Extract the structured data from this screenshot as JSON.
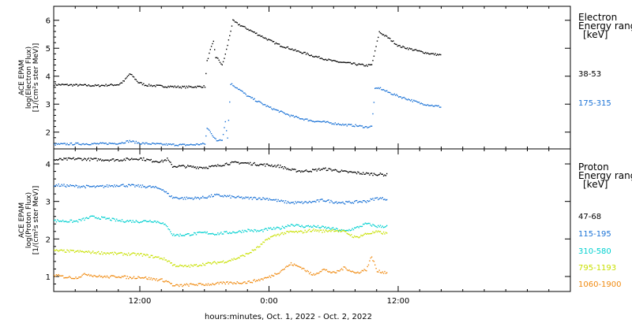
{
  "chart_data": [
    {
      "type": "scatter",
      "panel": "electron",
      "ylabel_lines": [
        "ACE EPAM",
        "log(Electron Flux)",
        "[1/(cm²s ster MeV)]"
      ],
      "ylim": [
        1.4,
        6.5
      ],
      "yticks": [
        2,
        3,
        4,
        5,
        6
      ],
      "legend_title": [
        "Electron",
        "Energy ranges",
        "[keV]"
      ],
      "series": [
        {
          "name": "38-53",
          "color": "#000000",
          "x": [
            0,
            2,
            4,
            6,
            6.5,
            7,
            7.3,
            7.8,
            8.5,
            10,
            12,
            14,
            14.2,
            14.5,
            14.8,
            15.0,
            15.3,
            15.6,
            15.9,
            16.2,
            16.6,
            17,
            17.5,
            18,
            19,
            20,
            21,
            22,
            22.5,
            23.2,
            24,
            25,
            26,
            27,
            28,
            29,
            29.5,
            29.8,
            30.2,
            30.6,
            31,
            31.5,
            32,
            33,
            34,
            35,
            36
          ],
          "y": [
            3.72,
            3.7,
            3.68,
            3.72,
            3.85,
            4.1,
            4.02,
            3.8,
            3.7,
            3.66,
            3.63,
            3.65,
            4.55,
            4.95,
            5.25,
            4.7,
            4.6,
            4.4,
            4.8,
            5.3,
            6.0,
            5.9,
            5.8,
            5.7,
            5.5,
            5.3,
            5.12,
            5.0,
            4.92,
            4.85,
            4.75,
            4.65,
            4.55,
            4.5,
            4.45,
            4.4,
            4.42,
            4.9,
            5.6,
            5.5,
            5.4,
            5.25,
            5.1,
            5.0,
            4.9,
            4.82,
            4.77
          ]
        },
        {
          "name": "175-315",
          "color": "#1a72d6",
          "x": [
            0,
            2,
            4,
            6,
            7,
            8,
            10,
            12,
            13,
            14,
            14.2,
            14.5,
            14.8,
            15.1,
            15.4,
            15.6,
            15.9,
            16.1,
            16.4,
            17,
            17.5,
            18,
            19,
            20,
            21,
            22,
            23,
            24,
            25,
            26,
            27,
            28,
            29,
            29.5,
            29.8,
            30.2,
            31,
            32,
            33,
            34,
            35,
            36
          ],
          "y": [
            1.58,
            1.6,
            1.6,
            1.62,
            1.7,
            1.62,
            1.58,
            1.56,
            1.57,
            1.6,
            2.15,
            2.05,
            1.85,
            1.7,
            1.75,
            1.75,
            2.4,
            1.8,
            3.75,
            3.6,
            3.45,
            3.3,
            3.1,
            2.9,
            2.75,
            2.6,
            2.5,
            2.42,
            2.38,
            2.33,
            2.28,
            2.25,
            2.2,
            2.22,
            3.55,
            3.6,
            3.45,
            3.3,
            3.18,
            3.05,
            2.98,
            2.92
          ]
        }
      ]
    },
    {
      "type": "scatter",
      "panel": "proton",
      "ylabel_lines": [
        "ACE EPAM",
        "log(Proton Flux)",
        "[1/(cm²s ster MeV)]"
      ],
      "ylim": [
        0.6,
        4.4
      ],
      "yticks": [
        1,
        2,
        3,
        4
      ],
      "legend_title": [
        "Proton",
        "Energy ranges",
        "[keV]"
      ],
      "xlabel": "hours:minutes, Oct.  1, 2022 - Oct.  2, 2022",
      "xlim": [
        0,
        48
      ],
      "xticks": [
        {
          "x": 8,
          "label": "12:00"
        },
        {
          "x": 20,
          "label": "0:00"
        },
        {
          "x": 32,
          "label": "12:00"
        }
      ],
      "series": [
        {
          "name": "47-68",
          "color": "#000000",
          "x": [
            0,
            2,
            4,
            6,
            8,
            9,
            10,
            10.5,
            11,
            12,
            13,
            14,
            15,
            16,
            17,
            18,
            19,
            20,
            21,
            22,
            23,
            24,
            25,
            26,
            27,
            28,
            29,
            30,
            31
          ],
          "y": [
            4.12,
            4.15,
            4.13,
            4.12,
            4.16,
            4.1,
            4.08,
            4.14,
            3.95,
            3.95,
            3.93,
            3.92,
            3.95,
            4.02,
            4.05,
            4.03,
            4.0,
            3.98,
            3.95,
            3.85,
            3.82,
            3.84,
            3.88,
            3.85,
            3.8,
            3.78,
            3.75,
            3.74,
            3.72
          ]
        },
        {
          "name": "115-195",
          "color": "#1a72d6",
          "x": [
            0,
            2,
            4,
            6,
            8,
            9,
            10,
            10.6,
            11,
            12,
            13,
            14,
            15,
            16,
            17,
            18,
            19,
            20,
            21,
            22,
            23,
            24,
            25,
            26,
            27,
            28,
            29,
            30,
            31
          ],
          "y": [
            3.45,
            3.42,
            3.4,
            3.45,
            3.42,
            3.4,
            3.35,
            3.2,
            3.12,
            3.1,
            3.1,
            3.12,
            3.18,
            3.15,
            3.12,
            3.1,
            3.1,
            3.08,
            3.02,
            2.98,
            2.98,
            3.0,
            3.05,
            3.0,
            2.98,
            3.0,
            3.02,
            3.1,
            3.08
          ]
        },
        {
          "name": "310-580",
          "color": "#00d0d0",
          "x": [
            0,
            2,
            3.5,
            5,
            6,
            8,
            9,
            10,
            10.7,
            11,
            12,
            13,
            14,
            15,
            16,
            17,
            18,
            19,
            20,
            21,
            22,
            23,
            24,
            25,
            26,
            27,
            28,
            29,
            30,
            31
          ],
          "y": [
            2.5,
            2.48,
            2.6,
            2.55,
            2.5,
            2.48,
            2.5,
            2.45,
            2.28,
            2.12,
            2.12,
            2.15,
            2.18,
            2.15,
            2.18,
            2.2,
            2.25,
            2.22,
            2.28,
            2.3,
            2.4,
            2.35,
            2.35,
            2.32,
            2.28,
            2.22,
            2.3,
            2.42,
            2.35,
            2.35
          ]
        },
        {
          "name": "795-1193",
          "color": "#c8e000",
          "x": [
            0,
            2,
            4,
            6,
            8,
            9,
            10,
            10.8,
            11,
            12,
            13,
            14,
            15,
            16,
            17,
            18,
            19,
            20,
            21,
            22,
            23,
            24,
            25,
            26,
            27,
            28,
            29,
            30,
            31
          ],
          "y": [
            1.7,
            1.68,
            1.65,
            1.62,
            1.6,
            1.55,
            1.5,
            1.4,
            1.32,
            1.28,
            1.3,
            1.35,
            1.38,
            1.42,
            1.5,
            1.62,
            1.8,
            2.05,
            2.15,
            2.2,
            2.2,
            2.25,
            2.22,
            2.25,
            2.2,
            2.05,
            2.15,
            2.2,
            2.15
          ]
        },
        {
          "name": "1060-1900",
          "color": "#f08a10",
          "x": [
            0,
            1,
            2,
            3,
            4,
            5,
            6,
            7,
            8,
            9,
            10,
            10.8,
            11,
            12,
            13,
            14,
            15,
            16,
            17,
            18,
            19,
            20,
            21,
            22,
            23,
            24,
            25,
            26,
            27,
            28,
            29,
            29.5,
            30,
            31
          ],
          "y": [
            1.05,
            1.0,
            0.98,
            1.08,
            1.02,
            1.0,
            1.02,
            0.98,
            1.0,
            0.95,
            0.92,
            0.85,
            0.76,
            0.78,
            0.8,
            0.8,
            0.82,
            0.84,
            0.85,
            0.86,
            0.92,
            1.0,
            1.15,
            1.35,
            1.25,
            1.05,
            1.2,
            1.1,
            1.25,
            1.1,
            1.2,
            1.55,
            1.15,
            1.12
          ]
        }
      ]
    }
  ]
}
